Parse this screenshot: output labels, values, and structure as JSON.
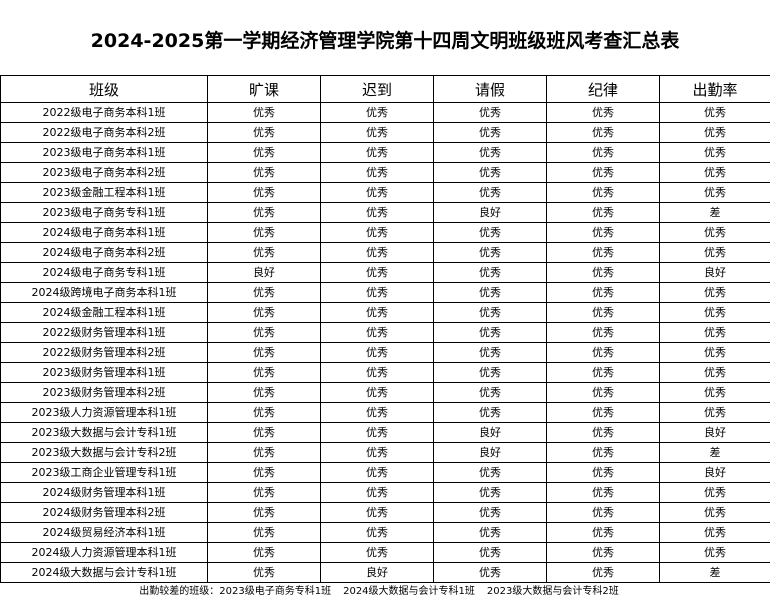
{
  "header": {
    "title": "2024-2025第一学期经济管理学院第十四周文明班级班风考查汇总表"
  },
  "table": {
    "columns": [
      "班级",
      "旷课",
      "迟到",
      "请假",
      "纪律",
      "出勤率"
    ],
    "rows": [
      [
        "2022级电子商务本科1班",
        "优秀",
        "优秀",
        "优秀",
        "优秀",
        "优秀"
      ],
      [
        "2022级电子商务本科2班",
        "优秀",
        "优秀",
        "优秀",
        "优秀",
        "优秀"
      ],
      [
        "2023级电子商务本科1班",
        "优秀",
        "优秀",
        "优秀",
        "优秀",
        "优秀"
      ],
      [
        "2023级电子商务本科2班",
        "优秀",
        "优秀",
        "优秀",
        "优秀",
        "优秀"
      ],
      [
        "2023级金融工程本科1班",
        "优秀",
        "优秀",
        "优秀",
        "优秀",
        "优秀"
      ],
      [
        "2023级电子商务专科1班",
        "优秀",
        "优秀",
        "良好",
        "优秀",
        "差"
      ],
      [
        "2024级电子商务本科1班",
        "优秀",
        "优秀",
        "优秀",
        "优秀",
        "优秀"
      ],
      [
        "2024级电子商务本科2班",
        "优秀",
        "优秀",
        "优秀",
        "优秀",
        "优秀"
      ],
      [
        "2024级电子商务专科1班",
        "良好",
        "优秀",
        "优秀",
        "优秀",
        "良好"
      ],
      [
        "2024级跨境电子商务本科1班",
        "优秀",
        "优秀",
        "优秀",
        "优秀",
        "优秀"
      ],
      [
        "2024级金融工程本科1班",
        "优秀",
        "优秀",
        "优秀",
        "优秀",
        "优秀"
      ],
      [
        "2022级财务管理本科1班",
        "优秀",
        "优秀",
        "优秀",
        "优秀",
        "优秀"
      ],
      [
        "2022级财务管理本科2班",
        "优秀",
        "优秀",
        "优秀",
        "优秀",
        "优秀"
      ],
      [
        "2023级财务管理本科1班",
        "优秀",
        "优秀",
        "优秀",
        "优秀",
        "优秀"
      ],
      [
        "2023级财务管理本科2班",
        "优秀",
        "优秀",
        "优秀",
        "优秀",
        "优秀"
      ],
      [
        "2023级人力资源管理本科1班",
        "优秀",
        "优秀",
        "优秀",
        "优秀",
        "优秀"
      ],
      [
        "2023级大数据与会计专科1班",
        "优秀",
        "优秀",
        "良好",
        "优秀",
        "良好"
      ],
      [
        "2023级大数据与会计专科2班",
        "优秀",
        "优秀",
        "良好",
        "优秀",
        "差"
      ],
      [
        "2023级工商企业管理专科1班",
        "优秀",
        "优秀",
        "优秀",
        "优秀",
        "良好"
      ],
      [
        "2024级财务管理本科1班",
        "优秀",
        "优秀",
        "优秀",
        "优秀",
        "优秀"
      ],
      [
        "2024级财务管理本科2班",
        "优秀",
        "优秀",
        "优秀",
        "优秀",
        "优秀"
      ],
      [
        "2024级贸易经济本科1班",
        "优秀",
        "优秀",
        "优秀",
        "优秀",
        "优秀"
      ],
      [
        "2024级人力资源管理本科1班",
        "优秀",
        "优秀",
        "优秀",
        "优秀",
        "优秀"
      ],
      [
        "2024级大数据与会计专科1班",
        "优秀",
        "良好",
        "优秀",
        "优秀",
        "差"
      ]
    ]
  },
  "footer": {
    "label": "出勤较差的班级：",
    "items": [
      "2023级电子商务专科1班",
      "2024级大数据与会计专科1班",
      "2023级大数据与会计专科2班"
    ]
  }
}
